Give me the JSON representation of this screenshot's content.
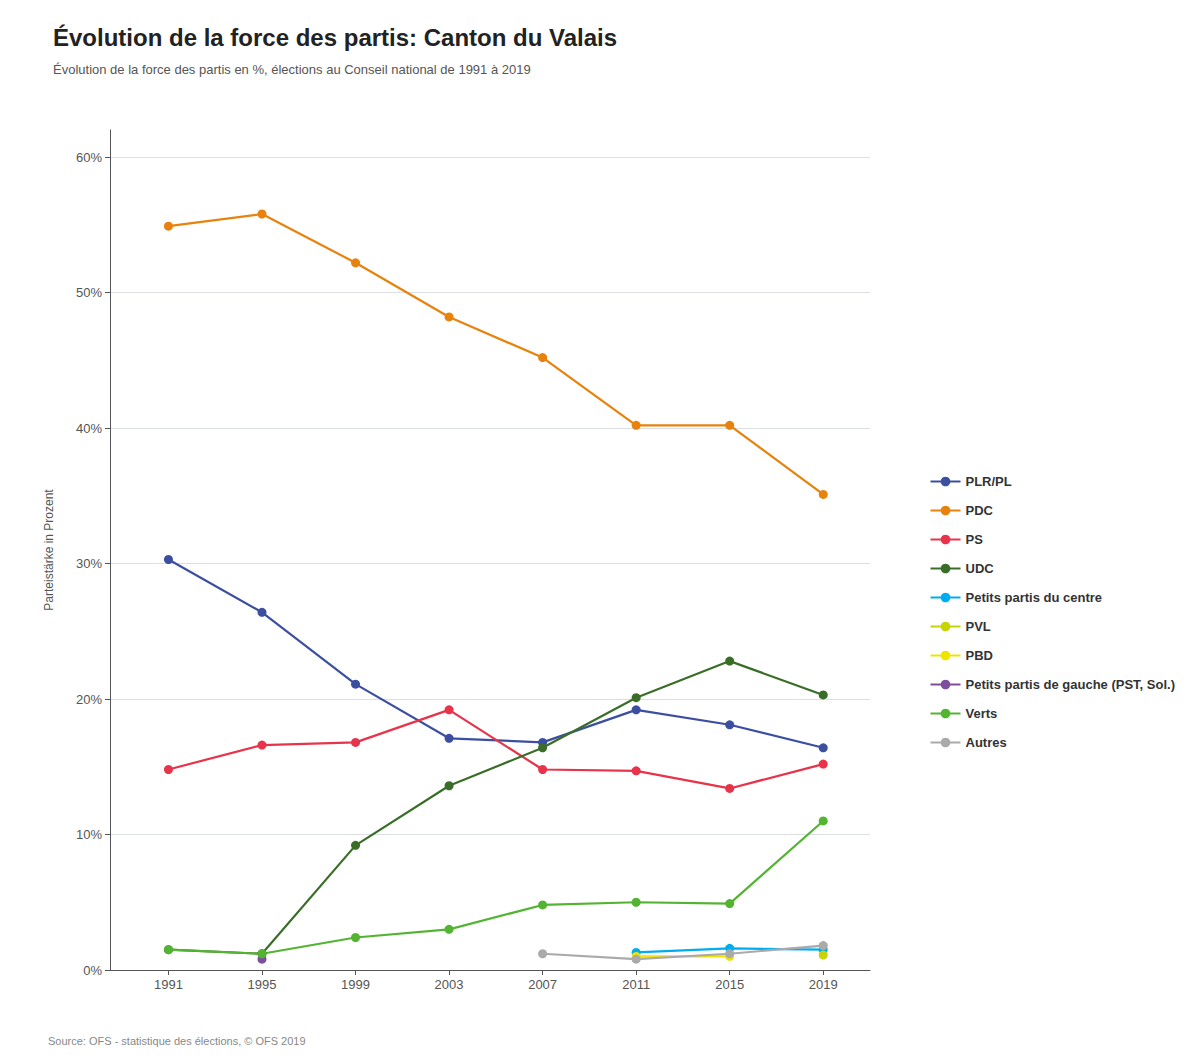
{
  "chart_data": {
    "type": "line",
    "title": "Évolution de la force des partis: Canton du Valais",
    "subtitle": "Évolution de la force des partis en %, élections au Conseil national de 1991 à 2019",
    "ylabel": "Parteistärke in Prozent",
    "source": "Source: OFS - statistique des élections, © OFS 2019",
    "x": [
      1991,
      1995,
      1999,
      2003,
      2007,
      2011,
      2015,
      2019
    ],
    "series": [
      {
        "name": "PLR/PL",
        "color": "#3C4EA0",
        "values": [
          30.3,
          26.4,
          21.1,
          17.1,
          16.8,
          19.2,
          18.1,
          16.4
        ]
      },
      {
        "name": "PDC",
        "color": "#E8820C",
        "values": [
          54.9,
          55.8,
          52.2,
          48.2,
          45.2,
          40.2,
          40.2,
          35.1
        ]
      },
      {
        "name": "PS",
        "color": "#E8334A",
        "values": [
          14.8,
          16.6,
          16.8,
          19.2,
          14.8,
          14.7,
          13.4,
          15.2
        ]
      },
      {
        "name": "UDC",
        "color": "#3A6E28",
        "values": [
          1.5,
          1.2,
          9.2,
          13.6,
          16.4,
          20.1,
          22.8,
          20.3
        ]
      },
      {
        "name": "Petits partis du centre",
        "color": "#00ADEF",
        "values": [
          null,
          null,
          null,
          null,
          null,
          1.3,
          1.6,
          1.5
        ]
      },
      {
        "name": "PVL",
        "color": "#C8D400",
        "values": [
          null,
          null,
          null,
          null,
          null,
          null,
          null,
          1.1
        ]
      },
      {
        "name": "PBD",
        "color": "#F0E500",
        "values": [
          null,
          null,
          null,
          null,
          null,
          1.0,
          1.0,
          null
        ]
      },
      {
        "name": "Petits partis de gauche (PST, Sol.)",
        "color": "#7B4F9E",
        "values": [
          null,
          0.8,
          null,
          null,
          null,
          null,
          null,
          null
        ]
      },
      {
        "name": "Verts",
        "color": "#53B432",
        "values": [
          1.5,
          1.2,
          2.4,
          3.0,
          4.8,
          5.0,
          4.9,
          11.0
        ]
      },
      {
        "name": "Autres",
        "color": "#AAAAAA",
        "values": [
          null,
          null,
          null,
          null,
          1.2,
          0.8,
          1.2,
          1.8
        ]
      }
    ],
    "xlim": [
      1988.5,
      2021
    ],
    "xticks": [
      1991,
      1995,
      1999,
      2003,
      2007,
      2011,
      2015,
      2019
    ],
    "ylim": [
      0,
      62
    ],
    "yticks": [
      {
        "value": 0,
        "label": "0%"
      },
      {
        "value": 10,
        "label": "10%"
      },
      {
        "value": 20,
        "label": "20%"
      },
      {
        "value": 30,
        "label": "30%"
      },
      {
        "value": 40,
        "label": "40%"
      },
      {
        "value": 50,
        "label": "50%"
      },
      {
        "value": 60,
        "label": "60%"
      }
    ],
    "grid": true,
    "legend": "right",
    "marker": "circle"
  }
}
